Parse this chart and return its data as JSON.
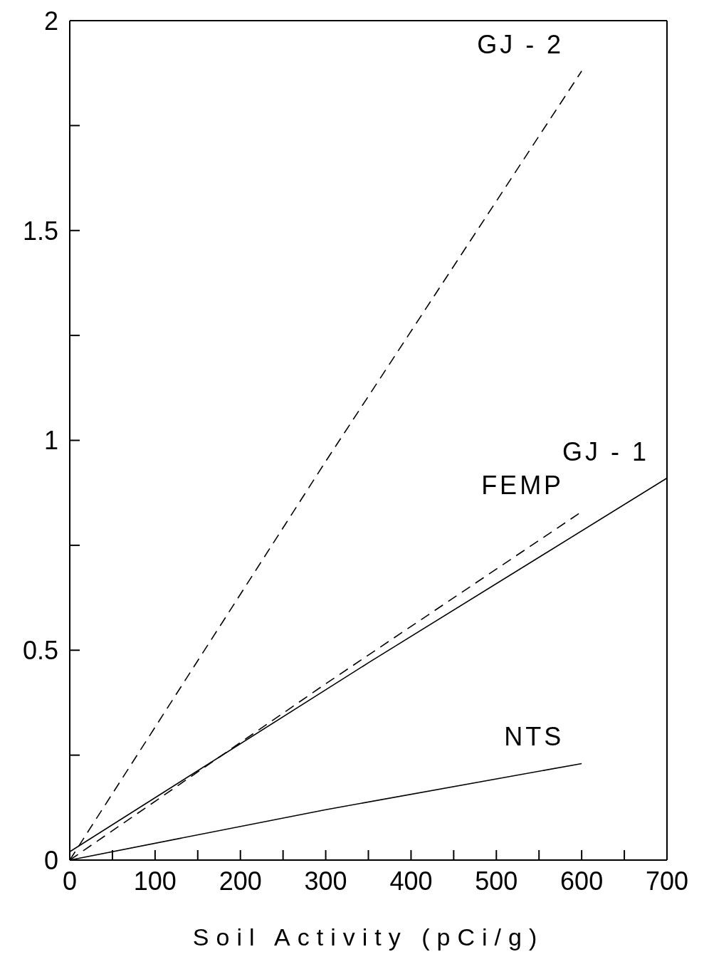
{
  "chart_data": {
    "type": "line",
    "xlabel": "Soil Activity (pCi/g)",
    "xlim": [
      0,
      700
    ],
    "ylim": [
      0,
      2
    ],
    "xticks": [
      0,
      {
        "value": 50,
        "label": null
      },
      100,
      {
        "value": 150,
        "label": null
      },
      200,
      {
        "value": 250,
        "label": null
      },
      300,
      {
        "value": 350,
        "label": null
      },
      400,
      {
        "value": 450,
        "label": null
      },
      500,
      {
        "value": 550,
        "label": null
      },
      600,
      {
        "value": 650,
        "label": null
      },
      700
    ],
    "yticks": [
      0,
      {
        "value": 0.25,
        "label": null
      },
      0.5,
      {
        "value": 0.75,
        "label": null
      },
      1,
      {
        "value": 1.25,
        "label": null
      },
      1.5,
      {
        "value": 1.75,
        "label": null
      },
      2
    ],
    "grid": false,
    "legend": false,
    "marker": "none",
    "series": [
      {
        "name": "GJ - 2",
        "color": "#000000",
        "line_style": "dashed",
        "x": [
          0,
          300,
          600
        ],
        "values": [
          0,
          0.95,
          1.88
        ]
      },
      {
        "name": "FEMP",
        "color": "#000000",
        "line_style": "dashed",
        "x": [
          0,
          300,
          600
        ],
        "values": [
          0,
          0.42,
          0.83
        ]
      },
      {
        "name": "GJ - 1",
        "color": "#000000",
        "line_style": "solid",
        "x": [
          0,
          350,
          700
        ],
        "values": [
          0.02,
          0.47,
          0.91
        ]
      },
      {
        "name": "NTS",
        "color": "#000000",
        "line_style": "solid",
        "x": [
          0,
          300,
          600
        ],
        "values": [
          0,
          0.12,
          0.23
        ]
      }
    ]
  }
}
